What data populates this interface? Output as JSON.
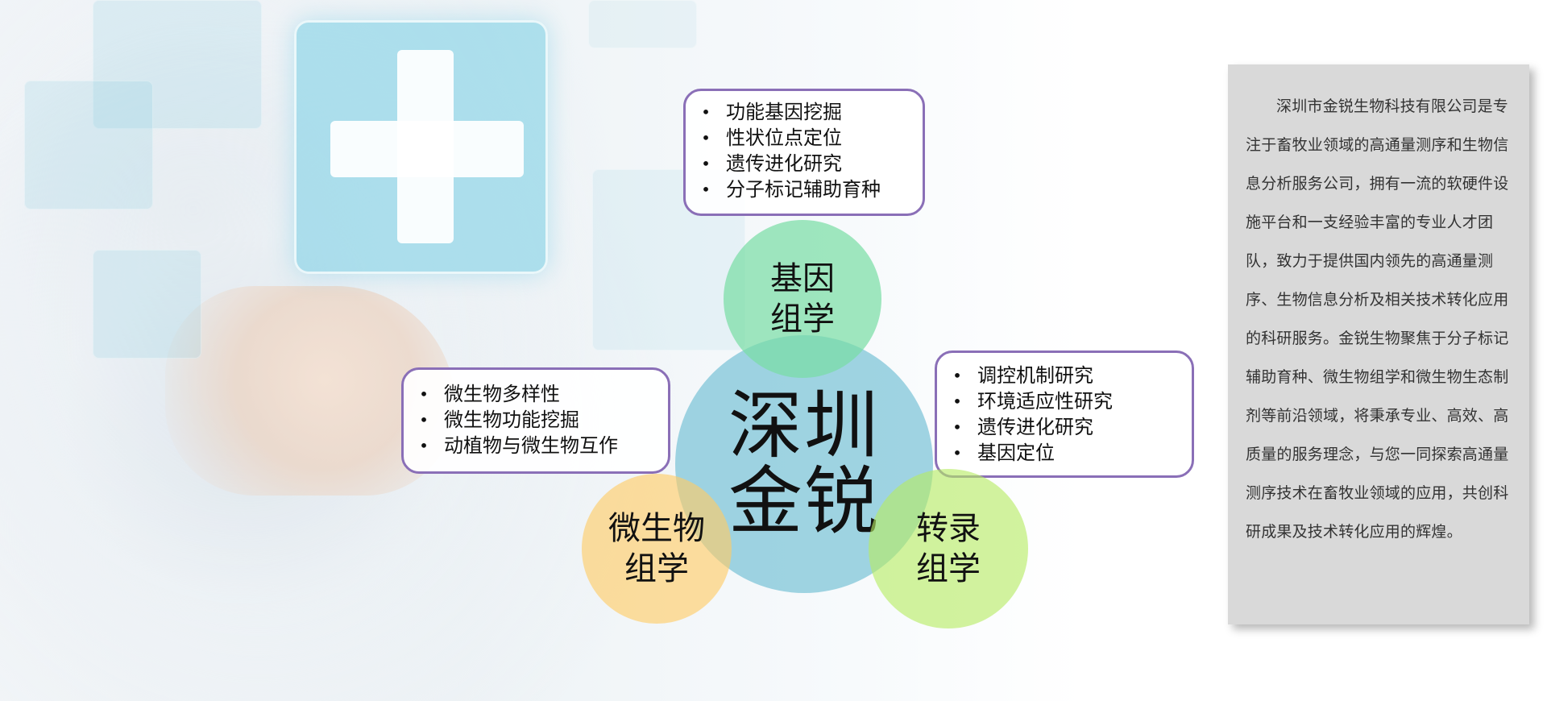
{
  "diagram": {
    "center": {
      "label": "深圳\n金锐"
    },
    "nodes": {
      "genomics": {
        "label": "基因\n组学"
      },
      "microbiomics": {
        "label": "微生物\n组学"
      },
      "transcriptomics": {
        "label": "转录\n组学"
      }
    },
    "callouts": {
      "genomics": {
        "items": [
          "功能基因挖掘",
          "性状位点定位",
          "遗传进化研究",
          "分子标记辅助育种"
        ]
      },
      "microbiomics": {
        "items": [
          "微生物多样性",
          "微生物功能挖掘",
          "动植物与微生物互作"
        ]
      },
      "transcriptomics": {
        "items": [
          "调控机制研究",
          "环境适应性研究",
          "遗传进化研究",
          "基因定位"
        ]
      }
    }
  },
  "description": {
    "text": "深圳市金锐生物科技有限公司是专注于畜牧业领域的高通量测序和生物信息分析服务公司，拥有一流的软硬件设施平台和一支经验丰富的专业人才团队，致力于提供国内领先的高通量测序、生物信息分析及相关技术转化应用的科研服务。金锐生物聚焦于分子标记辅助育种、微生物组学和微生物生态制剂等前沿领域，将秉承专业、高效、高质量的服务理念，与您一同探索高通量测序技术在畜牧业领域的应用，共创科研成果及技术转化应用的辉煌。"
  },
  "icons": {
    "bullet": "•"
  },
  "colors": {
    "callout_border": "#8a6fb7",
    "center_circle": "#7cc3d7",
    "genomics_circle": "#77dda4",
    "microbiomics_circle": "#ffcc64",
    "transcriptomics_circle": "#b6eb62",
    "panel_bg": "#d9d9d9"
  }
}
